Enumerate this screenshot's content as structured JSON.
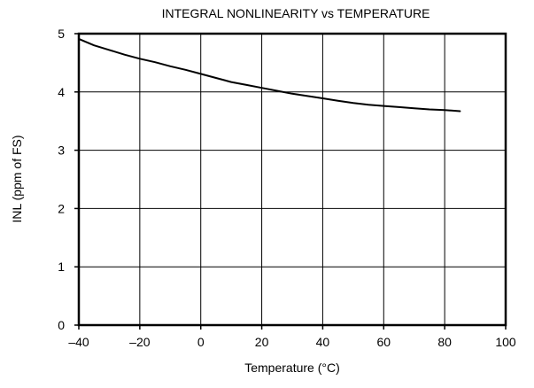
{
  "chart_data": {
    "type": "line",
    "title": "INTEGRAL NONLINEARITY vs TEMPERATURE",
    "xlabel": "Temperature (°C)",
    "ylabel": "INL (ppm of FS)",
    "xlim": [
      -40,
      100
    ],
    "ylim": [
      0,
      5
    ],
    "x_ticks": [
      -40,
      -20,
      0,
      20,
      40,
      60,
      80,
      100
    ],
    "y_ticks": [
      0,
      1,
      2,
      3,
      4,
      5
    ],
    "x_tick_labels": [
      "–40",
      "–20",
      "0",
      "20",
      "40",
      "60",
      "80",
      "100"
    ],
    "y_tick_labels": [
      "0",
      "1",
      "2",
      "3",
      "4",
      "5"
    ],
    "grid": true,
    "legend": "none",
    "series": [
      {
        "color": "#000000",
        "x": [
          -40,
          -35,
          -30,
          -25,
          -20,
          -15,
          -10,
          -5,
          0,
          5,
          10,
          15,
          20,
          25,
          30,
          35,
          40,
          45,
          50,
          55,
          60,
          65,
          70,
          75,
          80,
          85
        ],
        "y": [
          4.91,
          4.8,
          4.72,
          4.64,
          4.57,
          4.51,
          4.44,
          4.38,
          4.31,
          4.24,
          4.17,
          4.12,
          4.07,
          4.02,
          3.97,
          3.93,
          3.89,
          3.85,
          3.81,
          3.78,
          3.76,
          3.74,
          3.72,
          3.7,
          3.69,
          3.67
        ]
      }
    ]
  }
}
